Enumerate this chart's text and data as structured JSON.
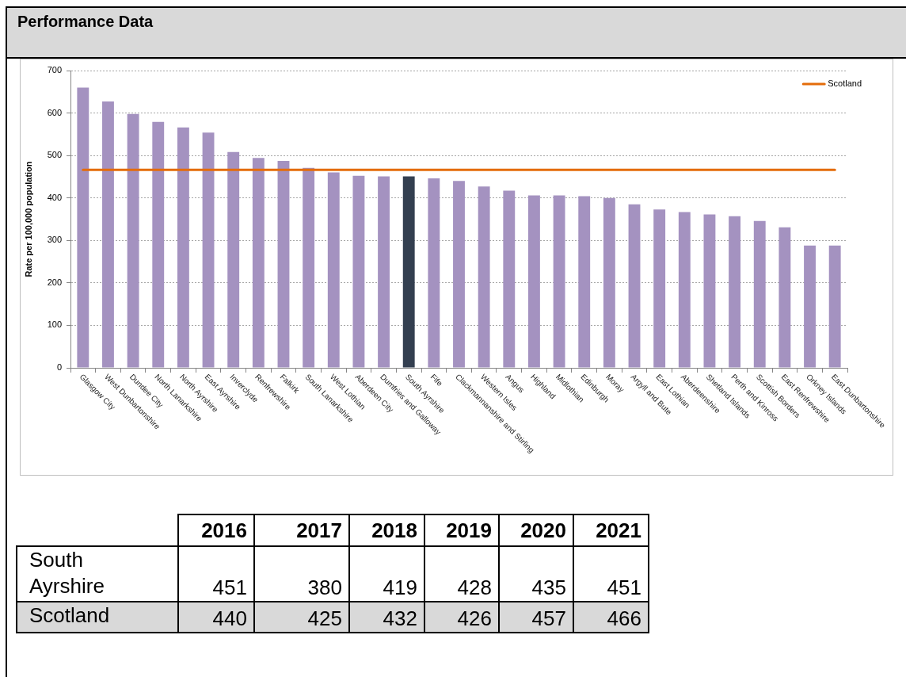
{
  "chart_data": [
    {
      "type": "bar",
      "title": "Performance Data",
      "ylabel": "Rate per 100,000 population",
      "categories": [
        "Glasgow City",
        "West Dunbartonshire",
        "Dundee City",
        "North Lanarkshire",
        "North Ayrshire",
        "East Ayrshire",
        "Inverclyde",
        "Renfrewshire",
        "Falkirk",
        "South Lanarkshire",
        "West Lothian",
        "Aberdeen City",
        "Dumfries and Galloway",
        "South Ayrshire",
        "Fife",
        "Clackmannanshire and Stirling",
        "Western Isles",
        "Angus",
        "Highland",
        "Midlothian",
        "Edinburgh",
        "Moray",
        "Argyll and Bute",
        "East Lothian",
        "Aberdeenshire",
        "Shetland Islands",
        "Perth and Kinross",
        "Scottish Borders",
        "East Renfrewshire",
        "Orkney Islands",
        "East Dunbartonshire"
      ],
      "series": [
        {
          "type": "bar",
          "colors": [
            "#a492c0",
            "#a492c0",
            "#a492c0",
            "#a492c0",
            "#a492c0",
            "#a492c0",
            "#a492c0",
            "#a492c0",
            "#a492c0",
            "#a492c0",
            "#a492c0",
            "#a492c0",
            "#a492c0",
            "#333f50",
            "#a492c0",
            "#a492c0",
            "#a492c0",
            "#a492c0",
            "#a492c0",
            "#a492c0",
            "#a492c0",
            "#a492c0",
            "#a492c0",
            "#a492c0",
            "#a492c0",
            "#a492c0",
            "#a492c0",
            "#a492c0",
            "#a492c0",
            "#a492c0",
            "#a492c0"
          ],
          "values": [
            660,
            627,
            598,
            579,
            566,
            554,
            508,
            494,
            487,
            471,
            460,
            452,
            451,
            451,
            446,
            440,
            427,
            417,
            406,
            406,
            404,
            400,
            385,
            373,
            367,
            361,
            357,
            346,
            331,
            288,
            288
          ]
        },
        {
          "type": "line",
          "name": "Scotland",
          "color": "#e46c0a",
          "values": [
            466,
            466,
            466,
            466,
            466,
            466,
            466,
            466,
            466,
            466,
            466,
            466,
            466,
            466,
            466,
            466,
            466,
            466,
            466,
            466,
            466,
            466,
            466,
            466,
            466,
            466,
            466,
            466,
            466,
            466,
            466
          ]
        }
      ],
      "ylim": [
        0,
        700
      ],
      "yticks": [
        0,
        100,
        200,
        300,
        400,
        500,
        600,
        700
      ],
      "grid": "y",
      "legend": "top right",
      "marker": "none"
    },
    {
      "type": "heatmap",
      "categories": [
        "2016",
        "2017",
        "2018",
        "2019",
        "2020",
        "2021"
      ],
      "y_categories": [
        "South Ayrshire",
        "Scotland"
      ],
      "cells": [
        [
          451,
          380,
          419,
          428,
          435,
          451
        ],
        [
          440,
          425,
          432,
          426,
          457,
          466
        ]
      ],
      "data_labels": true
    }
  ]
}
